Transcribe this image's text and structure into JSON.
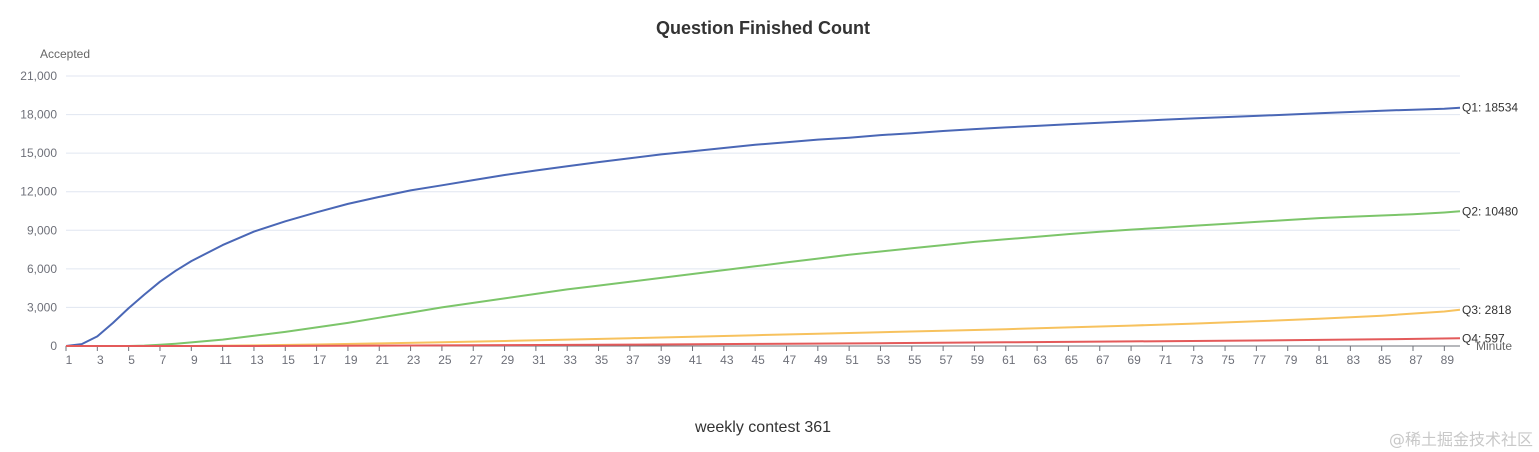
{
  "watermark": "@稀土掘金技术社区",
  "chart_data": {
    "type": "line",
    "title": "Question Finished Count",
    "subtitle": "weekly contest 361",
    "xlabel": "Minute",
    "ylabel": "Accepted",
    "xlim": [
      1,
      90
    ],
    "ylim": [
      0,
      21000
    ],
    "yticks": [
      0,
      3000,
      6000,
      9000,
      12000,
      15000,
      18000,
      21000
    ],
    "ytick_labels": [
      "0",
      "3,000",
      "6,000",
      "9,000",
      "12,000",
      "15,000",
      "18,000",
      "21,000"
    ],
    "xtick_labels": [
      "1",
      "3",
      "5",
      "7",
      "9",
      "11",
      "13",
      "15",
      "17",
      "19",
      "21",
      "23",
      "25",
      "27",
      "29",
      "31",
      "33",
      "35",
      "37",
      "39",
      "41",
      "43",
      "45",
      "47",
      "49",
      "51",
      "53",
      "55",
      "57",
      "59",
      "61",
      "63",
      "65",
      "67",
      "69",
      "71",
      "73",
      "75",
      "77",
      "79",
      "81",
      "83",
      "85",
      "87",
      "89"
    ],
    "grid": "horizontal",
    "legend": "end-labels",
    "series": [
      {
        "name": "Q1",
        "end_label": "Q1: 18534",
        "color": "#4a67b6",
        "points": [
          [
            1,
            0
          ],
          [
            2,
            150
          ],
          [
            3,
            750
          ],
          [
            4,
            1800
          ],
          [
            5,
            2950
          ],
          [
            6,
            4000
          ],
          [
            7,
            5000
          ],
          [
            8,
            5850
          ],
          [
            9,
            6600
          ],
          [
            11,
            7850
          ],
          [
            13,
            8900
          ],
          [
            15,
            9700
          ],
          [
            17,
            10400
          ],
          [
            19,
            11050
          ],
          [
            21,
            11600
          ],
          [
            23,
            12100
          ],
          [
            25,
            12500
          ],
          [
            27,
            12900
          ],
          [
            29,
            13300
          ],
          [
            31,
            13650
          ],
          [
            33,
            13980
          ],
          [
            35,
            14300
          ],
          [
            37,
            14600
          ],
          [
            39,
            14900
          ],
          [
            41,
            15150
          ],
          [
            43,
            15400
          ],
          [
            45,
            15650
          ],
          [
            47,
            15850
          ],
          [
            49,
            16050
          ],
          [
            51,
            16200
          ],
          [
            53,
            16400
          ],
          [
            55,
            16550
          ],
          [
            57,
            16720
          ],
          [
            59,
            16870
          ],
          [
            61,
            17000
          ],
          [
            63,
            17120
          ],
          [
            65,
            17250
          ],
          [
            67,
            17370
          ],
          [
            69,
            17480
          ],
          [
            71,
            17590
          ],
          [
            73,
            17700
          ],
          [
            75,
            17800
          ],
          [
            77,
            17900
          ],
          [
            79,
            18000
          ],
          [
            81,
            18100
          ],
          [
            83,
            18200
          ],
          [
            85,
            18300
          ],
          [
            87,
            18380
          ],
          [
            89,
            18450
          ],
          [
            90,
            18534
          ]
        ]
      },
      {
        "name": "Q2",
        "end_label": "Q2: 10480",
        "color": "#7cc56a",
        "points": [
          [
            1,
            0
          ],
          [
            5,
            0
          ],
          [
            6,
            30
          ],
          [
            7,
            100
          ],
          [
            8,
            180
          ],
          [
            9,
            280
          ],
          [
            11,
            500
          ],
          [
            13,
            800
          ],
          [
            15,
            1100
          ],
          [
            17,
            1450
          ],
          [
            19,
            1800
          ],
          [
            21,
            2200
          ],
          [
            23,
            2600
          ],
          [
            25,
            3000
          ],
          [
            27,
            3350
          ],
          [
            29,
            3700
          ],
          [
            31,
            4050
          ],
          [
            33,
            4400
          ],
          [
            35,
            4700
          ],
          [
            37,
            5000
          ],
          [
            39,
            5300
          ],
          [
            41,
            5600
          ],
          [
            43,
            5900
          ],
          [
            45,
            6200
          ],
          [
            47,
            6500
          ],
          [
            49,
            6800
          ],
          [
            51,
            7100
          ],
          [
            53,
            7350
          ],
          [
            55,
            7600
          ],
          [
            57,
            7850
          ],
          [
            59,
            8100
          ],
          [
            61,
            8300
          ],
          [
            63,
            8500
          ],
          [
            65,
            8700
          ],
          [
            67,
            8880
          ],
          [
            69,
            9050
          ],
          [
            71,
            9200
          ],
          [
            73,
            9350
          ],
          [
            75,
            9500
          ],
          [
            77,
            9650
          ],
          [
            79,
            9800
          ],
          [
            81,
            9950
          ],
          [
            83,
            10050
          ],
          [
            85,
            10150
          ],
          [
            87,
            10250
          ],
          [
            89,
            10380
          ],
          [
            90,
            10480
          ]
        ]
      },
      {
        "name": "Q3",
        "end_label": "Q3: 2818",
        "color": "#f7c25e",
        "points": [
          [
            1,
            0
          ],
          [
            9,
            0
          ],
          [
            13,
            50
          ],
          [
            17,
            120
          ],
          [
            21,
            200
          ],
          [
            25,
            290
          ],
          [
            29,
            390
          ],
          [
            33,
            500
          ],
          [
            37,
            610
          ],
          [
            41,
            720
          ],
          [
            45,
            840
          ],
          [
            49,
            960
          ],
          [
            53,
            1070
          ],
          [
            57,
            1190
          ],
          [
            61,
            1310
          ],
          [
            65,
            1450
          ],
          [
            69,
            1590
          ],
          [
            73,
            1740
          ],
          [
            77,
            1920
          ],
          [
            81,
            2120
          ],
          [
            85,
            2360
          ],
          [
            89,
            2680
          ],
          [
            90,
            2818
          ]
        ]
      },
      {
        "name": "Q4",
        "end_label": "Q4: 597",
        "color": "#e35a5a",
        "points": [
          [
            1,
            0
          ],
          [
            13,
            0
          ],
          [
            21,
            30
          ],
          [
            29,
            70
          ],
          [
            37,
            110
          ],
          [
            45,
            160
          ],
          [
            53,
            220
          ],
          [
            61,
            290
          ],
          [
            69,
            360
          ],
          [
            77,
            430
          ],
          [
            85,
            520
          ],
          [
            90,
            597
          ]
        ]
      }
    ]
  }
}
